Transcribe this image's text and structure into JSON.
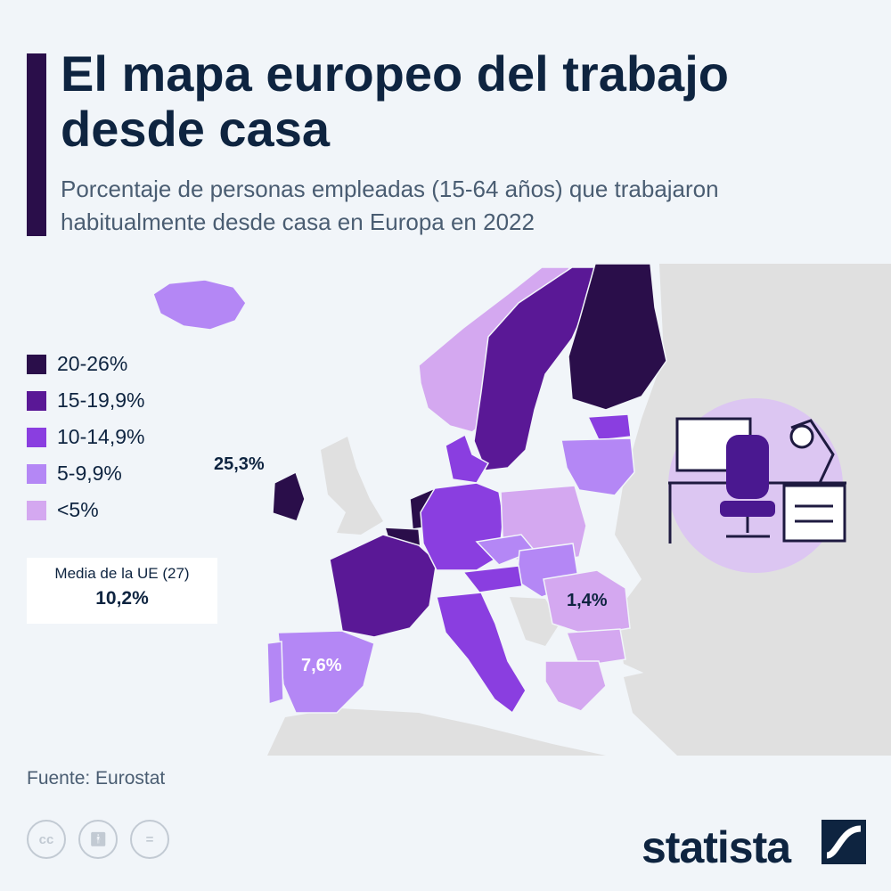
{
  "header": {
    "title": "El mapa europeo del trabajo desde casa",
    "subtitle": "Porcentaje de personas empleadas (15-64 años) que trabajaron habitualmente desde casa en Europa en 2022"
  },
  "legend": [
    {
      "label": "20-26%",
      "color": "#2a0e4a"
    },
    {
      "label": "15-19,9%",
      "color": "#5a1896"
    },
    {
      "label": "10-14,9%",
      "color": "#8a3ee0"
    },
    {
      "label": "5-9,9%",
      "color": "#b487f5"
    },
    {
      "label": "<5%",
      "color": "#d4a8f0"
    }
  ],
  "eu_average": {
    "label": "Media de la UE (27)",
    "value": "10,2%"
  },
  "map_labels": {
    "ireland": "25,3%",
    "spain": "7,6%",
    "romania": "1,4%"
  },
  "source": "Fuente: Eurostat",
  "footer": {
    "brand": "statista",
    "license_icons": [
      "cc-icon",
      "attribution-icon",
      "no-derivatives-icon"
    ]
  },
  "colors": {
    "accent": "#2a0e4a",
    "background": "#f1f5f9",
    "non_eu_land": "#e0e0e0",
    "text_dark": "#0e2440",
    "icon_circle": "#dcc6f2"
  }
}
